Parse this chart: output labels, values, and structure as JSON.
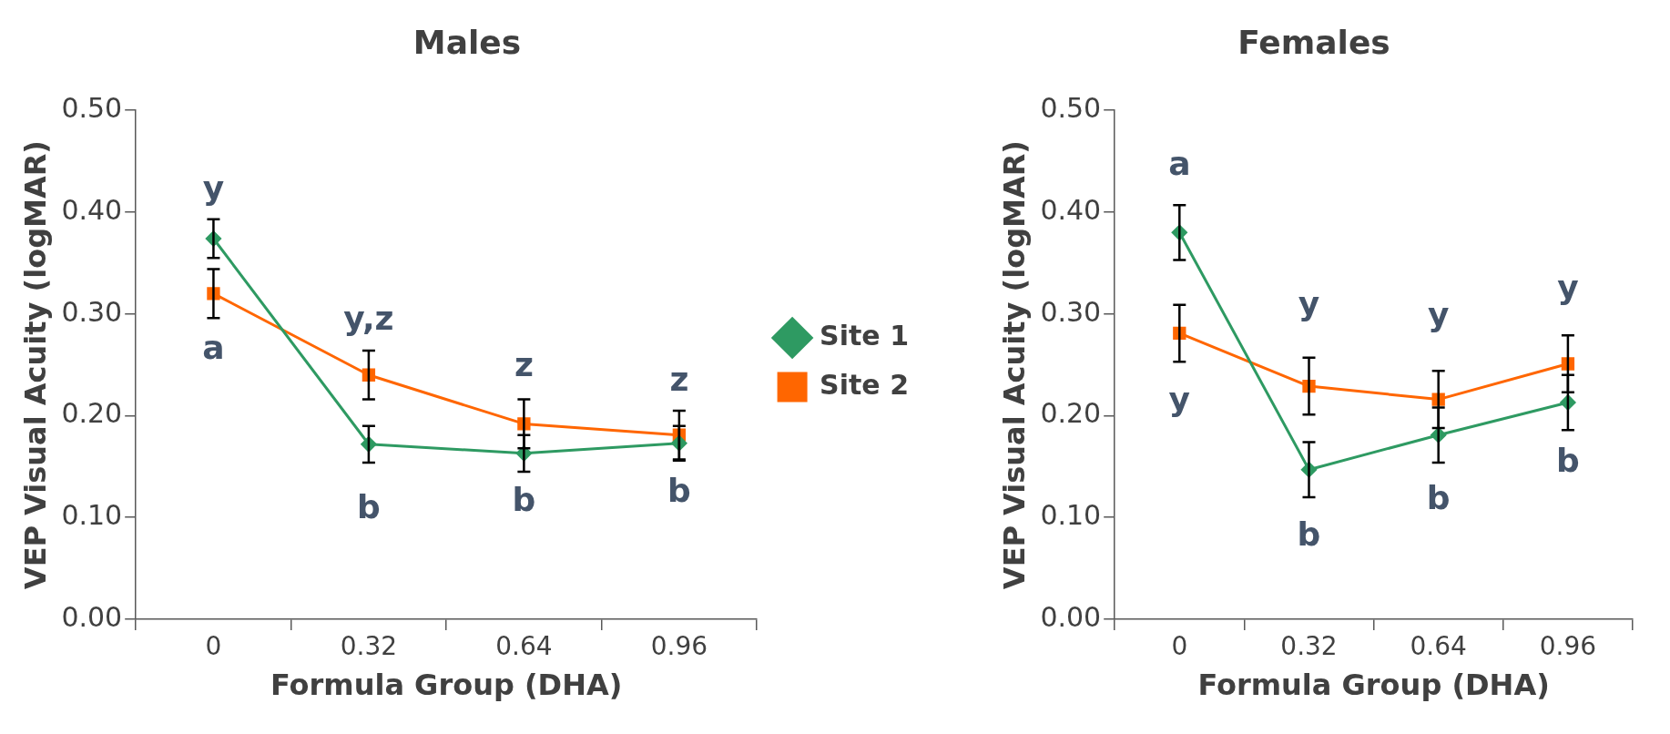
{
  "chart_data": [
    {
      "type": "line",
      "title": "Males",
      "xlabel": "Formula Group (DHA)",
      "ylabel": "VEP Visual Acuity (logMAR)",
      "categories": [
        "0",
        "0.32",
        "0.64",
        "0.96"
      ],
      "series": [
        {
          "name": "Site 1",
          "color": "#2e9a62",
          "marker": "diamond",
          "values": [
            0.374,
            0.172,
            0.163,
            0.173
          ],
          "errors": [
            0.019,
            0.018,
            0.018,
            0.017
          ]
        },
        {
          "name": "Site 2",
          "color": "#ff6600",
          "marker": "square",
          "values": [
            0.32,
            0.24,
            0.192,
            0.181
          ],
          "errors": [
            0.024,
            0.024,
            0.024,
            0.024
          ]
        }
      ],
      "ylim": [
        0,
        0.5
      ],
      "yticks": [
        {
          "value": 0,
          "label": "0.00"
        },
        {
          "value": 0.1,
          "label": "0.10"
        },
        {
          "value": 0.2,
          "label": "0.20"
        },
        {
          "value": 0.3,
          "label": "0.30"
        },
        {
          "value": 0.4,
          "label": "0.40"
        },
        {
          "value": 0.5,
          "label": "0.50"
        }
      ],
      "grid": false,
      "legend": "right",
      "annotations": [
        "y",
        "a",
        "y,z",
        "z",
        "z",
        "b",
        "b",
        "b"
      ]
    },
    {
      "type": "line",
      "title": "Females",
      "xlabel": "Formula Group (DHA)",
      "ylabel": "VEP Visual Acuity (logMAR)",
      "categories": [
        "0",
        "0.32",
        "0.64",
        "0.96"
      ],
      "series": [
        {
          "color": "#2e9a62",
          "marker": "diamond",
          "values": [
            0.38,
            0.147,
            0.181,
            0.213
          ],
          "errors": [
            0.027,
            0.027,
            0.027,
            0.027
          ]
        },
        {
          "color": "#ff6600",
          "marker": "square",
          "values": [
            0.281,
            0.229,
            0.216,
            0.251
          ],
          "errors": [
            0.028,
            0.028,
            0.028,
            0.028
          ]
        }
      ],
      "ylim": [
        0,
        0.5
      ],
      "yticks": [
        {
          "value": 0,
          "label": "0.00"
        },
        {
          "value": 0.1,
          "label": "0.10"
        },
        {
          "value": 0.2,
          "label": "0.20"
        },
        {
          "value": 0.3,
          "label": "0.30"
        },
        {
          "value": 0.4,
          "label": "0.40"
        },
        {
          "value": 0.5,
          "label": "0.50"
        }
      ],
      "grid": false,
      "annotations": [
        "a",
        "y",
        "y",
        "y",
        "y",
        "b",
        "b",
        "b"
      ]
    }
  ]
}
